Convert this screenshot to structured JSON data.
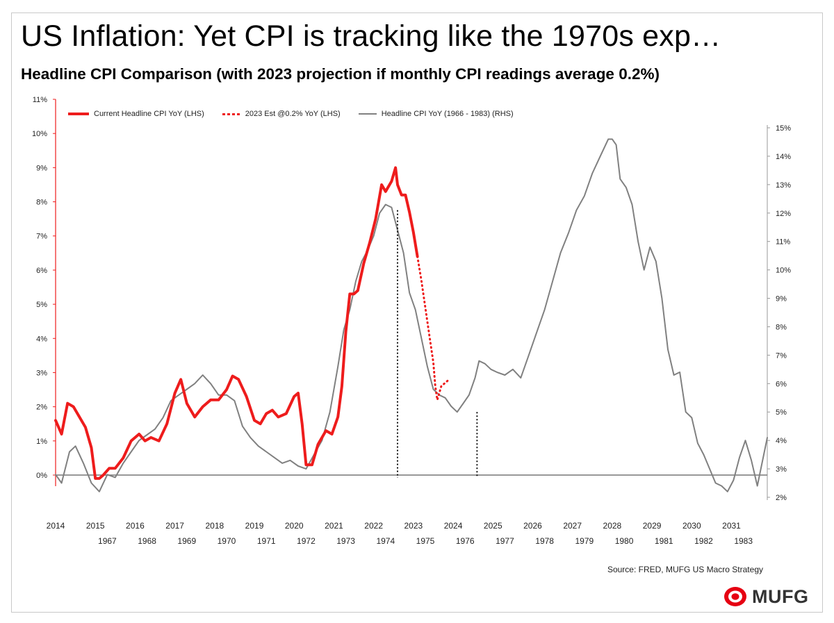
{
  "title": "US Inflation: Yet CPI is tracking like the 1970s exp…",
  "subtitle": "Headline CPI Comparison (with 2023 projection if monthly CPI readings average 0.2%)",
  "source": "Source: FRED, MUFG US Macro Strategy",
  "logo": {
    "text": "MUFG",
    "brand_color": "#e60012"
  },
  "colors": {
    "current": "#ee1c1c",
    "estimate": "#ee1c1c",
    "historic": "#808080",
    "axis_left": "#ee1c1c"
  },
  "chart_data": {
    "type": "line",
    "left_axis": {
      "min": -0.2,
      "max": 11,
      "ticks": [
        "0%",
        "1%",
        "2%",
        "3%",
        "4%",
        "5%",
        "6%",
        "7%",
        "8%",
        "9%",
        "10%",
        "11%"
      ],
      "tick_values": [
        0,
        1,
        2,
        3,
        4,
        5,
        6,
        7,
        8,
        9,
        10,
        11
      ]
    },
    "right_axis": {
      "min": 2,
      "max": 15.5,
      "ticks": [
        "2%",
        "3%",
        "4%",
        "5%",
        "6%",
        "7%",
        "8%",
        "9%",
        "10%",
        "11%",
        "12%",
        "13%",
        "14%",
        "15%"
      ],
      "tick_values": [
        2,
        3,
        4,
        5,
        6,
        7,
        8,
        9,
        10,
        11,
        12,
        13,
        14,
        15
      ]
    },
    "x_range": [
      2014,
      2031.9
    ],
    "x_ticks_top": [
      "2014",
      "2015",
      "2016",
      "2017",
      "2018",
      "2019",
      "2020",
      "2021",
      "2022",
      "2023",
      "2024",
      "2025",
      "2026",
      "2027",
      "2028",
      "2029",
      "2030",
      "2031"
    ],
    "x_ticks_top_values": [
      2014,
      2015,
      2016,
      2017,
      2018,
      2019,
      2020,
      2021,
      2022,
      2023,
      2024,
      2025,
      2026,
      2027,
      2028,
      2029,
      2030,
      2031
    ],
    "x_ticks_bottom": [
      "1967",
      "1968",
      "1969",
      "1970",
      "1971",
      "1972",
      "1973",
      "1974",
      "1975",
      "1976",
      "1977",
      "1978",
      "1979",
      "1980",
      "1981",
      "1982",
      "1983"
    ],
    "x_ticks_bottom_values": [
      2015.3,
      2016.3,
      2017.3,
      2018.3,
      2019.3,
      2020.3,
      2021.3,
      2022.3,
      2023.3,
      2024.3,
      2025.3,
      2026.3,
      2027.3,
      2028.3,
      2029.3,
      2030.3,
      2031.3
    ],
    "legend": [
      "Current Headline CPI YoY (LHS)",
      "2023 Est @0.2% YoY (LHS)",
      "Headline CPI YoY (1966 - 1983) (RHS)"
    ],
    "vlines": [
      2022.6,
      2024.6
    ],
    "series": [
      {
        "name": "Current Headline CPI YoY (LHS)",
        "axis": "left",
        "style": "solid",
        "x": [
          2014.0,
          2014.15,
          2014.3,
          2014.45,
          2014.6,
          2014.75,
          2014.9,
          2015.0,
          2015.1,
          2015.2,
          2015.35,
          2015.5,
          2015.7,
          2015.9,
          2016.1,
          2016.25,
          2016.4,
          2016.6,
          2016.8,
          2017.0,
          2017.15,
          2017.3,
          2017.5,
          2017.7,
          2017.9,
          2018.1,
          2018.3,
          2018.45,
          2018.6,
          2018.8,
          2019.0,
          2019.15,
          2019.3,
          2019.45,
          2019.6,
          2019.8,
          2020.0,
          2020.1,
          2020.2,
          2020.3,
          2020.45,
          2020.6,
          2020.8,
          2020.95,
          2021.1,
          2021.2,
          2021.3,
          2021.4,
          2021.5,
          2021.6,
          2021.75,
          2021.9,
          2022.05,
          2022.2,
          2022.3,
          2022.45,
          2022.55,
          2022.6,
          2022.7,
          2022.8,
          2022.9,
          2023.0,
          2023.1
        ],
        "values": [
          1.6,
          1.2,
          2.1,
          2.0,
          1.7,
          1.4,
          0.8,
          -0.1,
          -0.1,
          0.0,
          0.2,
          0.2,
          0.5,
          1.0,
          1.2,
          1.0,
          1.1,
          1.0,
          1.5,
          2.4,
          2.8,
          2.1,
          1.7,
          2.0,
          2.2,
          2.2,
          2.5,
          2.9,
          2.8,
          2.3,
          1.6,
          1.5,
          1.8,
          1.9,
          1.7,
          1.8,
          2.3,
          2.4,
          1.5,
          0.3,
          0.3,
          0.9,
          1.3,
          1.2,
          1.7,
          2.6,
          4.2,
          5.3,
          5.3,
          5.4,
          6.2,
          6.8,
          7.5,
          8.5,
          8.3,
          8.6,
          9.0,
          8.5,
          8.2,
          8.2,
          7.7,
          7.1,
          6.4
        ]
      },
      {
        "name": "2023 Est @0.2% YoY (LHS)",
        "axis": "left",
        "style": "dotted",
        "x": [
          2023.1,
          2023.2,
          2023.3,
          2023.4,
          2023.5,
          2023.55,
          2023.6,
          2023.7,
          2023.8,
          2023.9
        ],
        "values": [
          6.4,
          5.7,
          4.9,
          4.1,
          3.3,
          2.6,
          2.2,
          2.6,
          2.7,
          2.8
        ]
      },
      {
        "name": "Headline CPI YoY (1966 - 1983) (RHS)",
        "axis": "right",
        "style": "solid",
        "x": [
          2014.0,
          2014.15,
          2014.35,
          2014.5,
          2014.7,
          2014.9,
          2015.1,
          2015.3,
          2015.5,
          2015.7,
          2015.9,
          2016.1,
          2016.3,
          2016.5,
          2016.7,
          2016.9,
          2017.1,
          2017.3,
          2017.5,
          2017.7,
          2017.9,
          2018.1,
          2018.3,
          2018.5,
          2018.7,
          2018.9,
          2019.1,
          2019.3,
          2019.5,
          2019.7,
          2019.9,
          2020.1,
          2020.3,
          2020.5,
          2020.7,
          2020.9,
          2021.1,
          2021.25,
          2021.4,
          2021.55,
          2021.7,
          2021.85,
          2022.0,
          2022.15,
          2022.3,
          2022.45,
          2022.6,
          2022.75,
          2022.9,
          2023.05,
          2023.2,
          2023.35,
          2023.5,
          2023.65,
          2023.8,
          2023.95,
          2024.1,
          2024.25,
          2024.4,
          2024.55,
          2024.65,
          2024.8,
          2024.95,
          2025.1,
          2025.3,
          2025.5,
          2025.7,
          2025.9,
          2026.1,
          2026.3,
          2026.5,
          2026.7,
          2026.9,
          2027.1,
          2027.3,
          2027.5,
          2027.7,
          2027.9,
          2028.0,
          2028.1,
          2028.2,
          2028.35,
          2028.5,
          2028.65,
          2028.8,
          2028.95,
          2029.1,
          2029.25,
          2029.4,
          2029.55,
          2029.7,
          2029.85,
          2030.0,
          2030.15,
          2030.3,
          2030.45,
          2030.6,
          2030.75,
          2030.9,
          2031.05,
          2031.2,
          2031.35,
          2031.5,
          2031.65,
          2031.9
        ],
        "values": [
          2.8,
          2.5,
          3.6,
          3.8,
          3.2,
          2.5,
          2.2,
          2.8,
          2.7,
          3.2,
          3.6,
          4.0,
          4.2,
          4.4,
          4.8,
          5.4,
          5.6,
          5.8,
          6.0,
          6.3,
          6.0,
          5.6,
          5.6,
          5.4,
          4.5,
          4.1,
          3.8,
          3.6,
          3.4,
          3.2,
          3.3,
          3.1,
          3.0,
          3.5,
          4.0,
          5.0,
          6.6,
          7.9,
          8.6,
          9.6,
          10.3,
          10.7,
          11.2,
          12.0,
          12.3,
          12.2,
          11.4,
          10.6,
          9.2,
          8.6,
          7.6,
          6.6,
          5.8,
          5.6,
          5.5,
          5.2,
          5.0,
          5.3,
          5.6,
          6.2,
          6.8,
          6.7,
          6.5,
          6.4,
          6.3,
          6.5,
          6.2,
          7.0,
          7.8,
          8.6,
          9.6,
          10.6,
          11.3,
          12.1,
          12.6,
          13.4,
          14.0,
          14.6,
          14.6,
          14.4,
          13.2,
          12.9,
          12.3,
          11.0,
          10.0,
          10.8,
          10.3,
          9.0,
          7.2,
          6.3,
          6.4,
          5.0,
          4.8,
          3.9,
          3.5,
          3.0,
          2.5,
          2.4,
          2.2,
          2.6,
          3.4,
          4.0,
          3.3,
          2.4,
          4.1
        ]
      }
    ]
  }
}
